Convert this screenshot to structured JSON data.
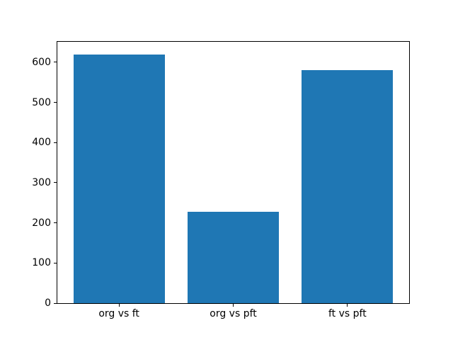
{
  "chart_data": {
    "type": "bar",
    "categories": [
      "org vs ft",
      "org vs pft",
      "ft vs pft"
    ],
    "values": [
      620,
      228,
      580
    ],
    "title": "",
    "xlabel": "",
    "ylabel": "",
    "yticks": [
      0,
      100,
      200,
      300,
      400,
      500,
      600
    ],
    "ylim": [
      0,
      651
    ],
    "xlim": [
      -0.54,
      2.54
    ],
    "bar_width": 0.8,
    "bar_color": "#1f77b4",
    "grid": false,
    "legend": null
  }
}
